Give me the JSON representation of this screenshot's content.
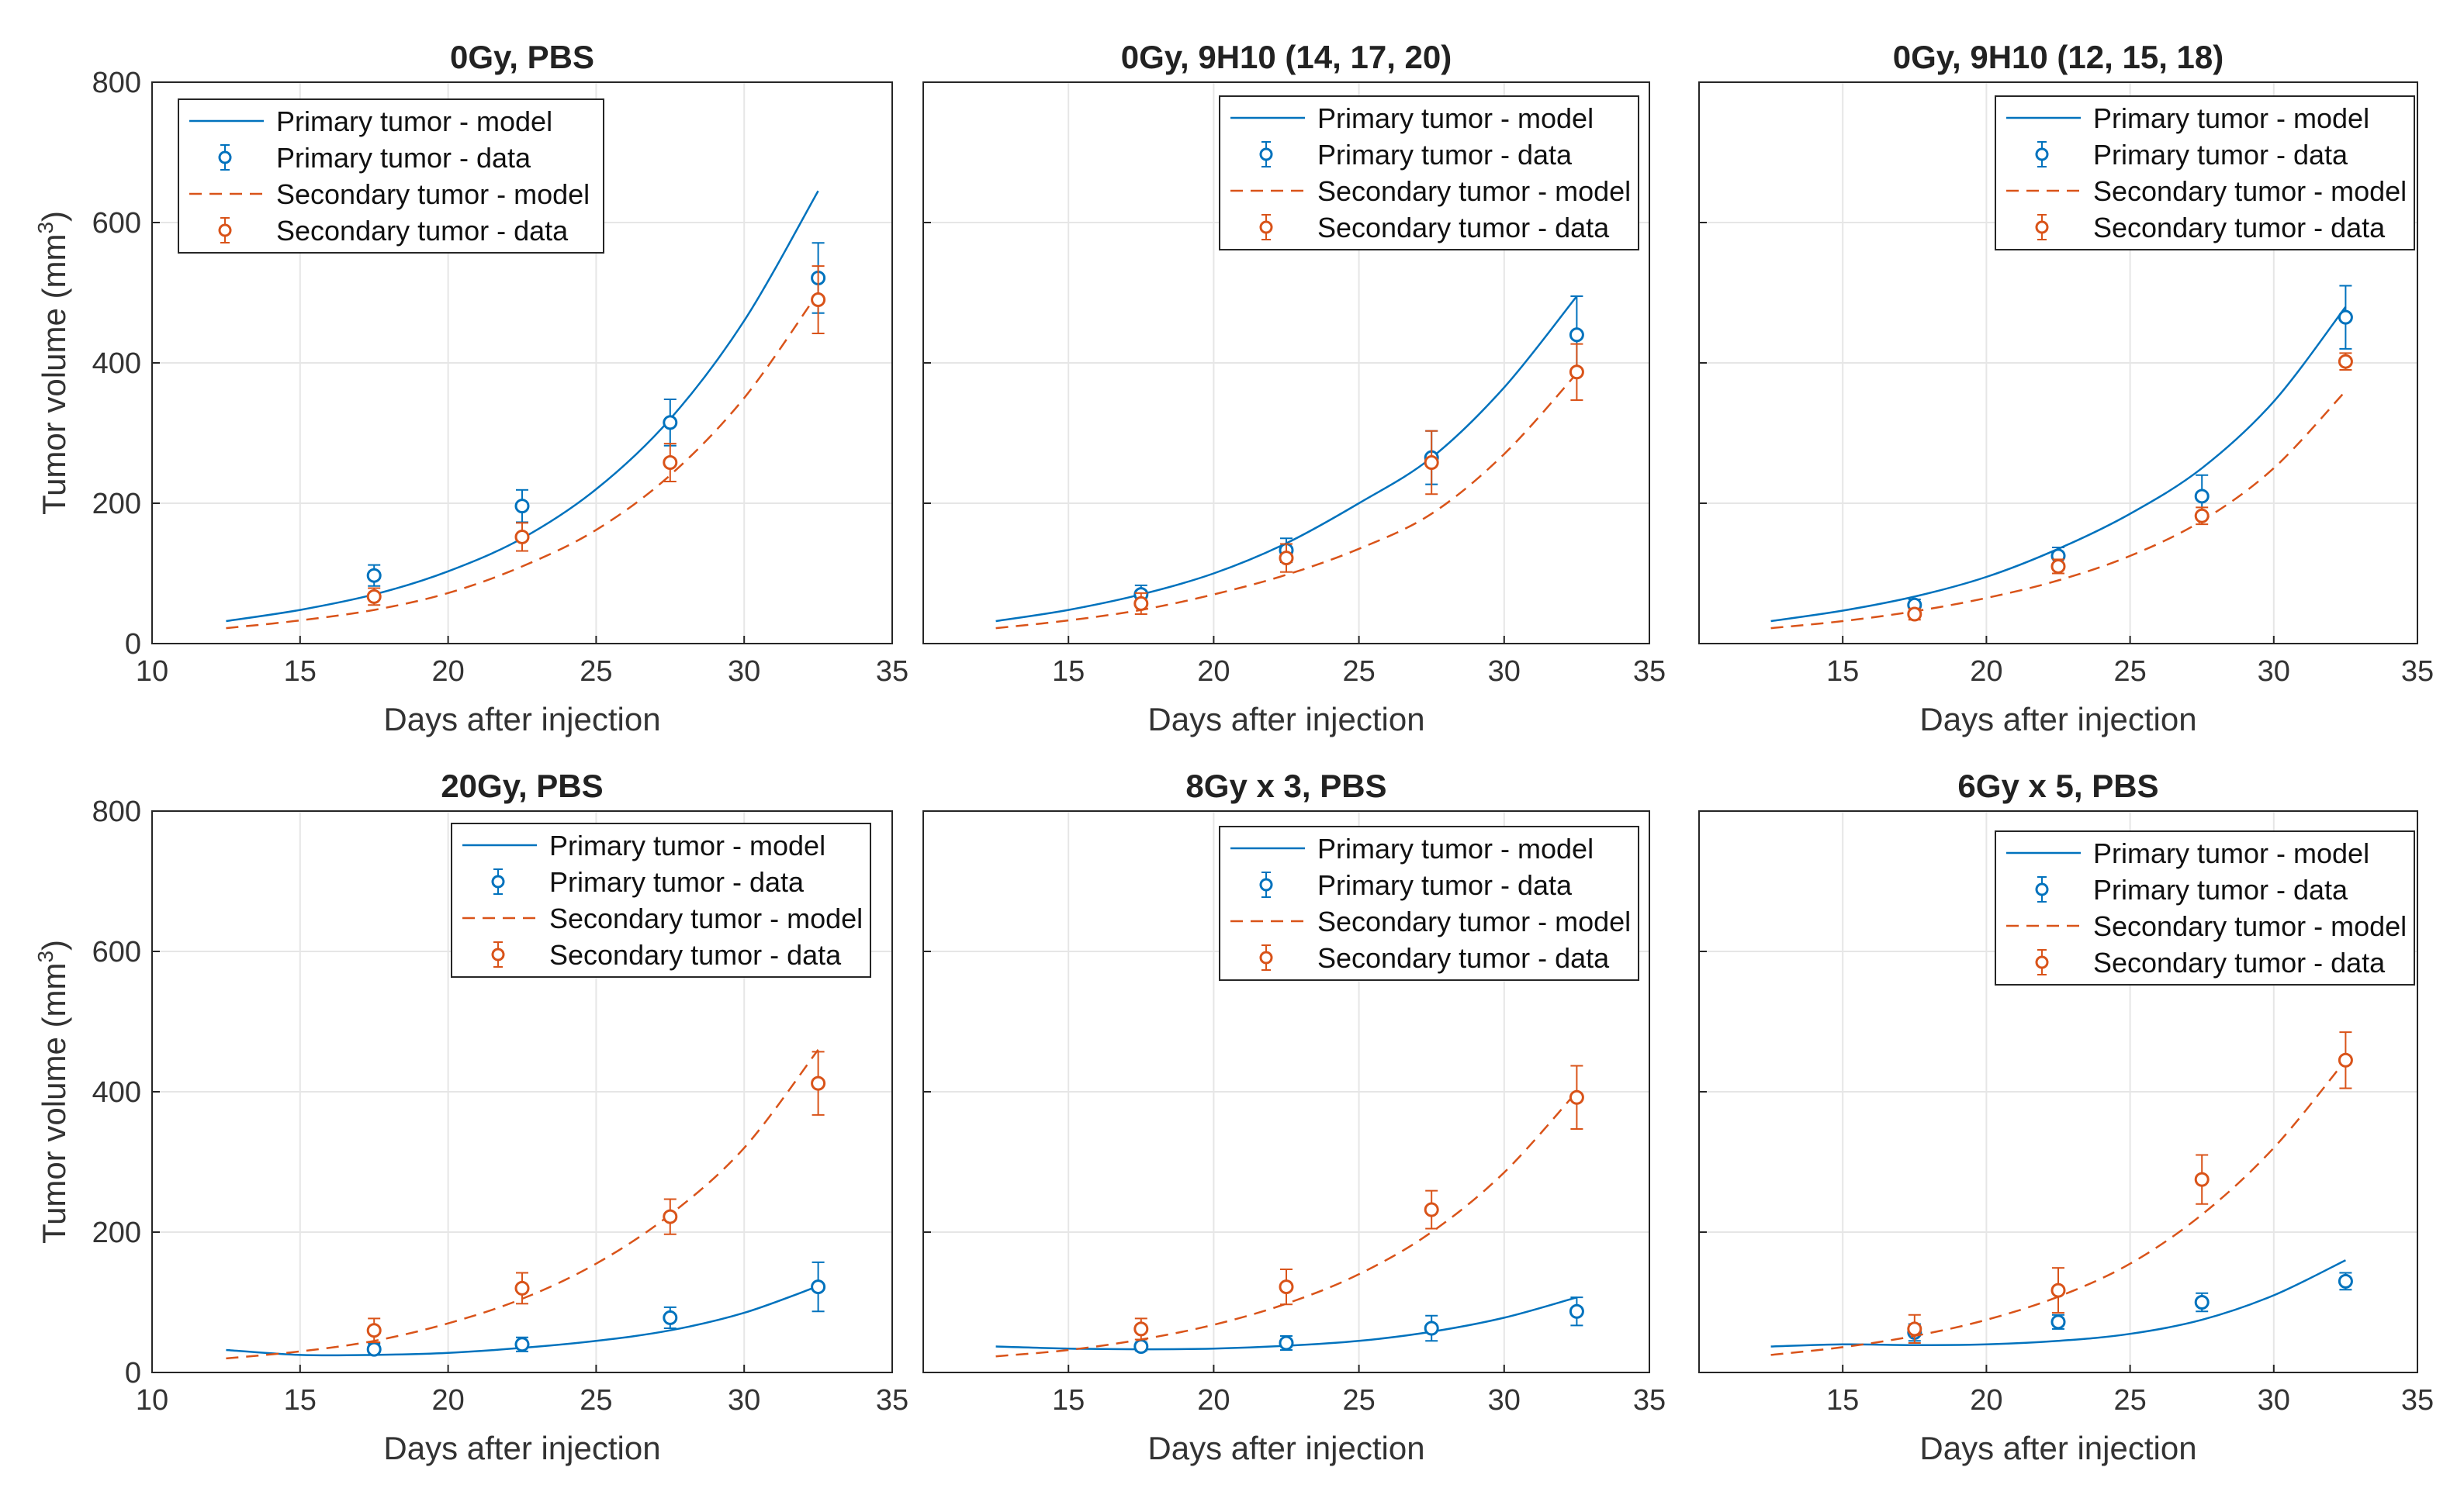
{
  "figure": {
    "x_label": "Days after injection",
    "y_label_main": "Tumor volume (mm",
    "y_label_sup": "3",
    "y_label_close": ")",
    "colors": {
      "primary": "#0072BD",
      "secondary": "#D95319",
      "grid": "#e6e6e6",
      "axis": "#262626"
    }
  },
  "chart_data": [
    {
      "type": "line",
      "title": "0Gy, PBS",
      "xlabel": "Days after injection",
      "ylabel": "Tumor volume (mm^3)",
      "xlim": [
        10,
        35
      ],
      "ylim": [
        0,
        800
      ],
      "xticks": [
        10,
        15,
        20,
        25,
        30,
        35
      ],
      "yticks": [
        0,
        200,
        400,
        600,
        800
      ],
      "show_xtick_10": true,
      "show_yticks": true,
      "legend": [
        "Primary tumor - model",
        "Primary tumor - data",
        "Secondary tumor - model",
        "Secondary tumor - data"
      ],
      "legend_position": "top-left",
      "series": [
        {
          "name": "Primary tumor - model",
          "style": "solid",
          "color": "primary",
          "x": [
            12.5,
            15,
            17.5,
            20,
            22.5,
            25,
            27.5,
            30,
            32.5
          ],
          "y": [
            32,
            48,
            70,
            103,
            150,
            220,
            320,
            460,
            645
          ]
        },
        {
          "name": "Primary tumor - data",
          "style": "marker",
          "color": "primary",
          "x": [
            17.5,
            22.5,
            27.5,
            32.5
          ],
          "y": [
            97,
            196,
            315,
            521
          ],
          "err": [
            15,
            23,
            33,
            50
          ]
        },
        {
          "name": "Secondary tumor - model",
          "style": "dashed",
          "color": "secondary",
          "x": [
            12.5,
            15,
            17.5,
            20,
            22.5,
            25,
            27.5,
            30,
            32.5
          ],
          "y": [
            22,
            33,
            48,
            72,
            110,
            162,
            240,
            350,
            500
          ]
        },
        {
          "name": "Secondary tumor - data",
          "style": "marker",
          "color": "secondary",
          "x": [
            17.5,
            22.5,
            27.5,
            32.5
          ],
          "y": [
            67,
            152,
            258,
            490
          ],
          "err": [
            12,
            20,
            27,
            48
          ]
        }
      ]
    },
    {
      "type": "line",
      "title": "0Gy, 9H10 (14, 17, 20)",
      "xlabel": "Days after injection",
      "xlim": [
        10,
        35
      ],
      "ylim": [
        0,
        800
      ],
      "xticks": [
        10,
        15,
        20,
        25,
        30,
        35
      ],
      "yticks": [
        0,
        200,
        400,
        600,
        800
      ],
      "show_xtick_10": false,
      "show_yticks": false,
      "legend": [
        "Primary tumor - model",
        "Primary tumor - data",
        "Secondary tumor - model",
        "Secondary tumor - data"
      ],
      "legend_position": "top-right",
      "series": [
        {
          "name": "Primary tumor - model",
          "style": "solid",
          "color": "primary",
          "x": [
            12.5,
            15,
            17.5,
            20,
            22.5,
            25,
            27.5,
            30,
            32.5
          ],
          "y": [
            32,
            48,
            70,
            100,
            143,
            200,
            265,
            365,
            495
          ]
        },
        {
          "name": "Primary tumor - data",
          "style": "marker",
          "color": "primary",
          "x": [
            17.5,
            22.5,
            27.5,
            32.5
          ],
          "y": [
            70,
            133,
            265,
            440
          ],
          "err": [
            13,
            17,
            38,
            55
          ]
        },
        {
          "name": "Secondary tumor - model",
          "style": "dashed",
          "color": "secondary",
          "x": [
            12.5,
            15,
            17.5,
            20,
            22.5,
            25,
            27.5,
            30,
            32.5
          ],
          "y": [
            22,
            33,
            48,
            70,
            98,
            135,
            185,
            270,
            385
          ]
        },
        {
          "name": "Secondary tumor - data",
          "style": "marker",
          "color": "secondary",
          "x": [
            17.5,
            22.5,
            27.5,
            32.5
          ],
          "y": [
            57,
            122,
            258,
            387
          ],
          "err": [
            15,
            20,
            45,
            40
          ]
        }
      ]
    },
    {
      "type": "line",
      "title": "0Gy, 9H10 (12, 15, 18)",
      "xlabel": "Days after injection",
      "xlim": [
        10,
        35
      ],
      "ylim": [
        0,
        800
      ],
      "xticks": [
        10,
        15,
        20,
        25,
        30,
        35
      ],
      "yticks": [
        0,
        200,
        400,
        600,
        800
      ],
      "show_xtick_10": false,
      "show_yticks": false,
      "legend": [
        "Primary tumor - model",
        "Primary tumor - data",
        "Secondary tumor - model",
        "Secondary tumor - data"
      ],
      "legend_position": "top-right",
      "series": [
        {
          "name": "Primary tumor - model",
          "style": "solid",
          "color": "primary",
          "x": [
            12.5,
            15,
            17.5,
            20,
            22.5,
            25,
            27.5,
            30,
            32.5
          ],
          "y": [
            32,
            47,
            67,
            95,
            135,
            185,
            250,
            345,
            480
          ]
        },
        {
          "name": "Primary tumor - data",
          "style": "marker",
          "color": "primary",
          "x": [
            17.5,
            22.5,
            27.5,
            32.5
          ],
          "y": [
            55,
            125,
            210,
            465
          ],
          "err": [
            8,
            12,
            30,
            45
          ]
        },
        {
          "name": "Secondary tumor - model",
          "style": "dashed",
          "color": "secondary",
          "x": [
            12.5,
            15,
            17.5,
            20,
            22.5,
            25,
            27.5,
            30,
            32.5
          ],
          "y": [
            22,
            32,
            46,
            65,
            90,
            125,
            175,
            250,
            360
          ]
        },
        {
          "name": "Secondary tumor - data",
          "style": "marker",
          "color": "secondary",
          "x": [
            17.5,
            22.5,
            27.5,
            32.5
          ],
          "y": [
            42,
            110,
            182,
            402
          ],
          "err": [
            8,
            10,
            12,
            12
          ]
        }
      ]
    },
    {
      "type": "line",
      "title": "20Gy, PBS",
      "xlabel": "Days after injection",
      "ylabel": "Tumor volume (mm^3)",
      "xlim": [
        10,
        35
      ],
      "ylim": [
        0,
        800
      ],
      "xticks": [
        10,
        15,
        20,
        25,
        30,
        35
      ],
      "yticks": [
        0,
        200,
        400,
        600,
        800
      ],
      "show_xtick_10": true,
      "show_yticks": true,
      "legend": [
        "Primary tumor - model",
        "Primary tumor - data",
        "Secondary tumor - model",
        "Secondary tumor - data"
      ],
      "legend_position": "top-right",
      "series": [
        {
          "name": "Primary tumor - model",
          "style": "solid",
          "color": "primary",
          "x": [
            12.5,
            15,
            17.5,
            20,
            22.5,
            25,
            27.5,
            30,
            32.5
          ],
          "y": [
            32,
            25,
            25,
            28,
            35,
            45,
            60,
            85,
            123
          ]
        },
        {
          "name": "Primary tumor - data",
          "style": "marker",
          "color": "primary",
          "x": [
            17.5,
            22.5,
            27.5,
            32.5
          ],
          "y": [
            33,
            40,
            78,
            122
          ],
          "err": [
            8,
            10,
            15,
            35
          ]
        },
        {
          "name": "Secondary tumor - model",
          "style": "dashed",
          "color": "secondary",
          "x": [
            12.5,
            15,
            17.5,
            20,
            22.5,
            25,
            27.5,
            30,
            32.5
          ],
          "y": [
            20,
            30,
            45,
            70,
            105,
            155,
            225,
            320,
            460
          ]
        },
        {
          "name": "Secondary tumor - data",
          "style": "marker",
          "color": "secondary",
          "x": [
            17.5,
            22.5,
            27.5,
            32.5
          ],
          "y": [
            60,
            120,
            222,
            412
          ],
          "err": [
            17,
            22,
            25,
            45
          ]
        }
      ]
    },
    {
      "type": "line",
      "title": "8Gy x 3, PBS",
      "xlabel": "Days after injection",
      "xlim": [
        10,
        35
      ],
      "ylim": [
        0,
        800
      ],
      "xticks": [
        10,
        15,
        20,
        25,
        30,
        35
      ],
      "yticks": [
        0,
        200,
        400,
        600,
        800
      ],
      "show_xtick_10": false,
      "show_yticks": false,
      "legend": [
        "Primary tumor - model",
        "Primary tumor - data",
        "Secondary tumor - model",
        "Secondary tumor - data"
      ],
      "legend_position": "top-right",
      "series": [
        {
          "name": "Primary tumor - model",
          "style": "solid",
          "color": "primary",
          "x": [
            12.5,
            15,
            17.5,
            20,
            22.5,
            25,
            27.5,
            30,
            32.5
          ],
          "y": [
            37,
            34,
            33,
            34,
            38,
            45,
            58,
            78,
            107
          ]
        },
        {
          "name": "Primary tumor - data",
          "style": "marker",
          "color": "primary",
          "x": [
            17.5,
            22.5,
            27.5,
            32.5
          ],
          "y": [
            37,
            42,
            63,
            87
          ],
          "err": [
            6,
            10,
            18,
            20
          ]
        },
        {
          "name": "Secondary tumor - model",
          "style": "dashed",
          "color": "secondary",
          "x": [
            12.5,
            15,
            17.5,
            20,
            22.5,
            25,
            27.5,
            30,
            32.5
          ],
          "y": [
            23,
            32,
            47,
            68,
            98,
            140,
            200,
            285,
            400
          ]
        },
        {
          "name": "Secondary tumor - data",
          "style": "marker",
          "color": "secondary",
          "x": [
            17.5,
            22.5,
            27.5,
            32.5
          ],
          "y": [
            62,
            122,
            232,
            392
          ],
          "err": [
            15,
            25,
            27,
            45
          ]
        }
      ]
    },
    {
      "type": "line",
      "title": "6Gy x 5, PBS",
      "xlabel": "Days after injection",
      "xlim": [
        10,
        35
      ],
      "ylim": [
        0,
        800
      ],
      "xticks": [
        10,
        15,
        20,
        25,
        30,
        35
      ],
      "yticks": [
        0,
        200,
        400,
        600,
        800
      ],
      "show_xtick_10": false,
      "show_yticks": false,
      "legend": [
        "Primary tumor - model",
        "Primary tumor - data",
        "Secondary tumor - model",
        "Secondary tumor - data"
      ],
      "legend_position": "top-right",
      "series": [
        {
          "name": "Primary tumor - model",
          "style": "solid",
          "color": "primary",
          "x": [
            12.5,
            15,
            17.5,
            20,
            22.5,
            25,
            27.5,
            30,
            32.5
          ],
          "y": [
            37,
            40,
            39,
            40,
            45,
            55,
            75,
            110,
            160
          ]
        },
        {
          "name": "Primary tumor - data",
          "style": "marker",
          "color": "primary",
          "x": [
            17.5,
            22.5,
            27.5,
            32.5
          ],
          "y": [
            57,
            72,
            100,
            130
          ],
          "err": [
            12,
            10,
            13,
            12
          ]
        },
        {
          "name": "Secondary tumor - model",
          "style": "dashed",
          "color": "secondary",
          "x": [
            12.5,
            15,
            17.5,
            20,
            22.5,
            25,
            27.5,
            30,
            32.5
          ],
          "y": [
            25,
            36,
            52,
            75,
            108,
            155,
            225,
            320,
            445
          ]
        },
        {
          "name": "Secondary tumor - data",
          "style": "marker",
          "color": "secondary",
          "x": [
            17.5,
            22.5,
            27.5,
            32.5
          ],
          "y": [
            62,
            117,
            275,
            445
          ],
          "err": [
            20,
            32,
            35,
            40
          ]
        }
      ]
    }
  ]
}
